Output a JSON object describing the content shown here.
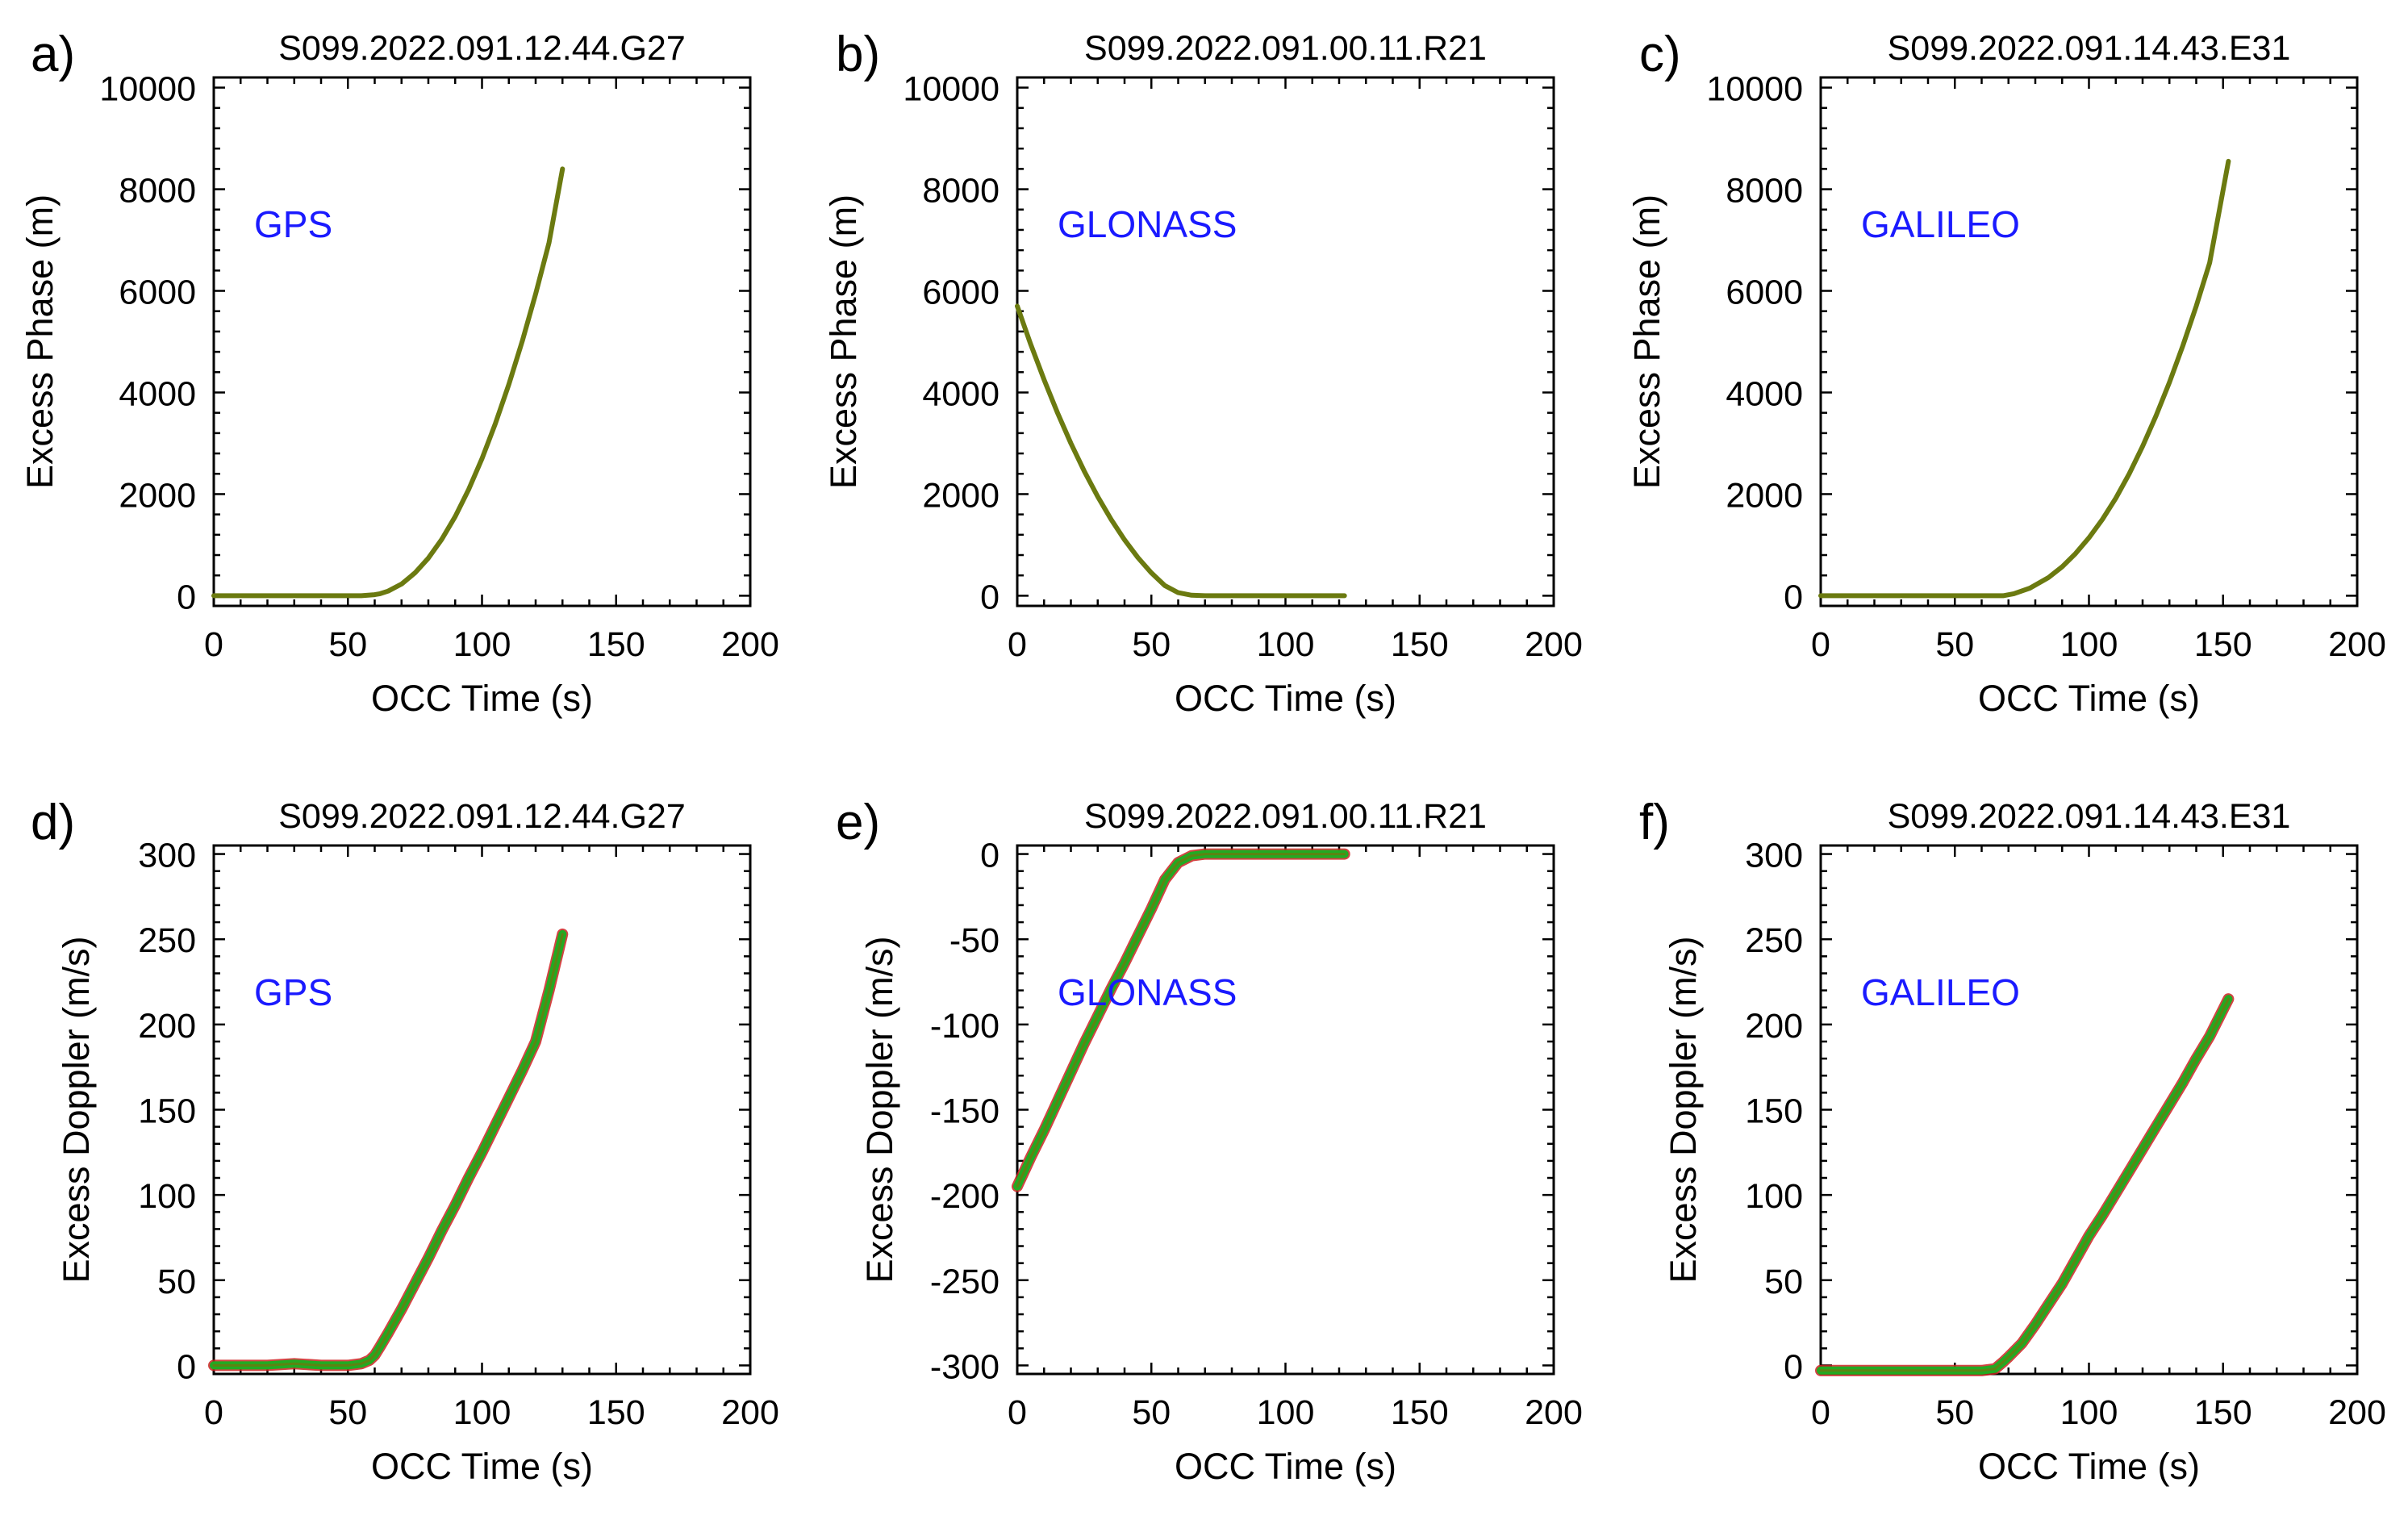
{
  "colors": {
    "annotation": "#1a1aff",
    "series_main": "#6b7a10",
    "series_green": "#22aa22",
    "series_red": "#cc2222"
  },
  "chart_data": [
    {
      "panel": "a)",
      "type": "line",
      "title": "S099.2022.091.12.44.G27",
      "xlabel": "OCC Time (s)",
      "ylabel": "Excess Phase (m)",
      "xlim": [
        0,
        200
      ],
      "ylim": [
        -200,
        10200
      ],
      "xticks": [
        0,
        50,
        100,
        150,
        200
      ],
      "yticks": [
        0,
        2000,
        4000,
        6000,
        8000,
        10000
      ],
      "annotation": "GPS",
      "series": [
        {
          "style": "phase",
          "x": [
            0,
            20,
            40,
            55,
            60,
            62,
            65,
            70,
            75,
            80,
            85,
            90,
            95,
            100,
            105,
            110,
            115,
            120,
            125,
            130
          ],
          "y": [
            0,
            0,
            0,
            0,
            20,
            40,
            90,
            230,
            450,
            740,
            1110,
            1560,
            2090,
            2700,
            3390,
            4160,
            5010,
            5940,
            6950,
            8400
          ]
        }
      ]
    },
    {
      "panel": "b)",
      "type": "line",
      "title": "S099.2022.091.00.11.R21",
      "xlabel": "OCC Time (s)",
      "ylabel": "Excess Phase (m)",
      "xlim": [
        0,
        200
      ],
      "ylim": [
        -200,
        10200
      ],
      "xticks": [
        0,
        50,
        100,
        150,
        200
      ],
      "yticks": [
        0,
        2000,
        4000,
        6000,
        8000,
        10000
      ],
      "annotation": "GLONASS",
      "series": [
        {
          "style": "phase",
          "x": [
            0,
            5,
            10,
            15,
            20,
            25,
            30,
            35,
            40,
            45,
            50,
            55,
            60,
            65,
            70,
            80,
            100,
            122
          ],
          "y": [
            5700,
            4950,
            4250,
            3600,
            3000,
            2450,
            1950,
            1500,
            1100,
            750,
            450,
            200,
            60,
            10,
            0,
            0,
            0,
            0
          ]
        }
      ]
    },
    {
      "panel": "c)",
      "type": "line",
      "title": "S099.2022.091.14.43.E31",
      "xlabel": "OCC Time (s)",
      "ylabel": "Excess Phase (m)",
      "xlim": [
        0,
        200
      ],
      "ylim": [
        -200,
        10200
      ],
      "xticks": [
        0,
        50,
        100,
        150,
        200
      ],
      "yticks": [
        0,
        2000,
        4000,
        6000,
        8000,
        10000
      ],
      "annotation": "GALILEO",
      "series": [
        {
          "style": "phase",
          "x": [
            0,
            30,
            60,
            68,
            72,
            78,
            85,
            90,
            95,
            100,
            105,
            110,
            115,
            120,
            125,
            130,
            135,
            140,
            145,
            152
          ],
          "y": [
            0,
            0,
            0,
            0,
            40,
            150,
            360,
            570,
            830,
            1140,
            1500,
            1920,
            2400,
            2940,
            3540,
            4200,
            4920,
            5700,
            6550,
            8550
          ]
        }
      ]
    },
    {
      "panel": "d)",
      "type": "line",
      "title": "S099.2022.091.12.44.G27",
      "xlabel": "OCC Time (s)",
      "ylabel": "Excess Doppler (m/s)",
      "xlim": [
        0,
        200
      ],
      "ylim": [
        -5,
        305
      ],
      "xticks": [
        0,
        50,
        100,
        150,
        200
      ],
      "yticks": [
        0,
        50,
        100,
        150,
        200,
        250,
        300
      ],
      "annotation": "GPS",
      "series": [
        {
          "style": "doppler",
          "x": [
            0,
            20,
            30,
            40,
            50,
            55,
            58,
            60,
            62,
            65,
            70,
            75,
            80,
            85,
            90,
            95,
            100,
            105,
            110,
            115,
            120,
            125,
            130
          ],
          "y": [
            0,
            0,
            1,
            0,
            0,
            1,
            3,
            6,
            11,
            19,
            33,
            48,
            63,
            79,
            94,
            110,
            125,
            141,
            157,
            173,
            190,
            220,
            253
          ]
        }
      ]
    },
    {
      "panel": "e)",
      "type": "line",
      "title": "S099.2022.091.00.11.R21",
      "xlabel": "OCC Time (s)",
      "ylabel": "Excess Doppler (m/s)",
      "xlim": [
        0,
        200
      ],
      "ylim": [
        -305,
        5
      ],
      "xticks": [
        0,
        50,
        100,
        150,
        200
      ],
      "yticks": [
        0,
        -50,
        -100,
        -150,
        -200,
        -250,
        -300
      ],
      "annotation": "GLONASS",
      "series": [
        {
          "style": "doppler",
          "x": [
            0,
            5,
            10,
            15,
            20,
            25,
            30,
            35,
            40,
            45,
            50,
            55,
            60,
            65,
            70,
            80,
            100,
            122
          ],
          "y": [
            -195,
            -178,
            -162,
            -145,
            -128,
            -111,
            -95,
            -79,
            -64,
            -48,
            -32,
            -15,
            -5,
            -1,
            0,
            0,
            0,
            0
          ]
        }
      ]
    },
    {
      "panel": "f)",
      "type": "line",
      "title": "S099.2022.091.14.43.E31",
      "xlabel": "OCC Time (s)",
      "ylabel": "Excess Doppler (m/s)",
      "xlim": [
        0,
        200
      ],
      "ylim": [
        -5,
        305
      ],
      "xticks": [
        0,
        50,
        100,
        150,
        200
      ],
      "yticks": [
        0,
        50,
        100,
        150,
        200,
        250,
        300
      ],
      "annotation": "GALILEO",
      "series": [
        {
          "style": "doppler",
          "x": [
            0,
            30,
            60,
            65,
            68,
            70,
            75,
            80,
            85,
            90,
            95,
            100,
            105,
            110,
            115,
            120,
            125,
            130,
            135,
            140,
            145,
            152
          ],
          "y": [
            -3,
            -3,
            -3,
            -2,
            2,
            5,
            13,
            24,
            36,
            48,
            62,
            76,
            88,
            101,
            114,
            127,
            140,
            153,
            166,
            180,
            193,
            215
          ]
        }
      ]
    }
  ]
}
